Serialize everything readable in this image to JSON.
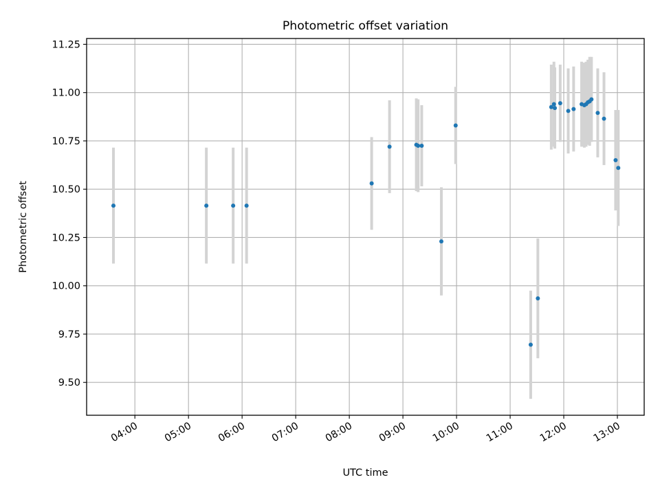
{
  "chart_data": {
    "type": "scatter",
    "title": "Photometric offset variation",
    "xlabel": "UTC time",
    "ylabel": "Photometric offset",
    "xlim": [
      "03:06",
      "13:30"
    ],
    "ylim": [
      9.33,
      11.28
    ],
    "grid": true,
    "x_ticks": [
      "04:00",
      "05:00",
      "06:00",
      "07:00",
      "08:00",
      "09:00",
      "10:00",
      "11:00",
      "12:00",
      "13:00"
    ],
    "y_ticks": [
      9.5,
      9.75,
      10.0,
      10.25,
      10.5,
      10.75,
      11.0,
      11.25
    ],
    "colors": {
      "point": "#1f77b4",
      "errorbar": "#d3d3d3",
      "grid": "#b0b0b0"
    },
    "points": [
      {
        "x": "03:36",
        "y": 10.415,
        "yerr": 0.3
      },
      {
        "x": "05:20",
        "y": 10.415,
        "yerr": 0.3
      },
      {
        "x": "05:50",
        "y": 10.415,
        "yerr": 0.3
      },
      {
        "x": "06:05",
        "y": 10.415,
        "yerr": 0.3
      },
      {
        "x": "08:25",
        "y": 10.53,
        "yerr": 0.24
      },
      {
        "x": "08:45",
        "y": 10.72,
        "yerr": 0.24
      },
      {
        "x": "09:15",
        "y": 10.73,
        "yerr": 0.24
      },
      {
        "x": "09:17",
        "y": 10.725,
        "yerr": 0.24
      },
      {
        "x": "09:21",
        "y": 10.725,
        "yerr": 0.21
      },
      {
        "x": "09:43",
        "y": 10.23,
        "yerr": 0.28
      },
      {
        "x": "09:59",
        "y": 10.83,
        "yerr": 0.2
      },
      {
        "x": "11:23",
        "y": 9.695,
        "yerr": 0.28
      },
      {
        "x": "11:31",
        "y": 9.935,
        "yerr": 0.31
      },
      {
        "x": "11:46",
        "y": 10.925,
        "yerr": 0.22
      },
      {
        "x": "11:49",
        "y": 10.94,
        "yerr": 0.22
      },
      {
        "x": "11:50",
        "y": 10.92,
        "yerr": 0.21
      },
      {
        "x": "11:56",
        "y": 10.945,
        "yerr": 0.2
      },
      {
        "x": "12:05",
        "y": 10.905,
        "yerr": 0.22
      },
      {
        "x": "12:11",
        "y": 10.915,
        "yerr": 0.22
      },
      {
        "x": "12:20",
        "y": 10.94,
        "yerr": 0.22
      },
      {
        "x": "12:23",
        "y": 10.935,
        "yerr": 0.22
      },
      {
        "x": "12:25",
        "y": 10.94,
        "yerr": 0.22
      },
      {
        "x": "12:27",
        "y": 10.95,
        "yerr": 0.22
      },
      {
        "x": "12:29",
        "y": 10.955,
        "yerr": 0.23
      },
      {
        "x": "12:31",
        "y": 10.965,
        "yerr": 0.22
      },
      {
        "x": "12:38",
        "y": 10.895,
        "yerr": 0.23
      },
      {
        "x": "12:45",
        "y": 10.865,
        "yerr": 0.24
      },
      {
        "x": "12:58",
        "y": 10.65,
        "yerr": 0.26
      },
      {
        "x": "13:01",
        "y": 10.61,
        "yerr": 0.3
      }
    ]
  }
}
